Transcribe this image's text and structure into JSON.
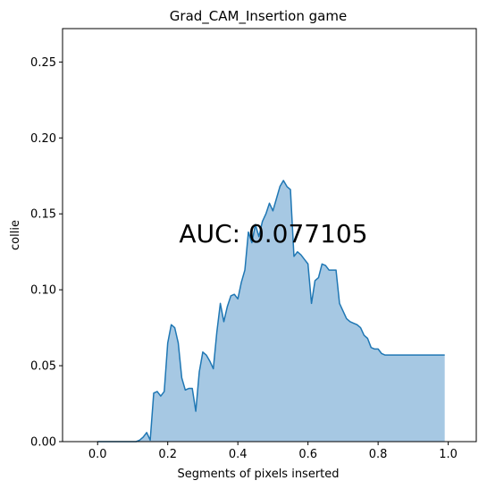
{
  "chart_data": {
    "type": "area",
    "title": "Grad_CAM_Insertion game",
    "xlabel": "Segments of pixels inserted",
    "ylabel": "collie",
    "xlim": [
      -0.1,
      1.08
    ],
    "ylim": [
      0,
      0.272
    ],
    "xticks": [
      0.0,
      0.2,
      0.4,
      0.6,
      0.8,
      1.0
    ],
    "xtick_labels": [
      "0.0",
      "0.2",
      "0.4",
      "0.6",
      "0.8",
      "1.0"
    ],
    "yticks": [
      0.0,
      0.05,
      0.1,
      0.15,
      0.2,
      0.25
    ],
    "ytick_labels": [
      "0.00",
      "0.05",
      "0.10",
      "0.15",
      "0.20",
      "0.25"
    ],
    "grid": false,
    "legend": "none",
    "annotation": "AUC: 0.077105",
    "line_color": "#1f77b4",
    "fill_color": "#a6c8e3",
    "x": [
      0.0,
      0.01,
      0.02,
      0.03,
      0.04,
      0.05,
      0.06,
      0.07,
      0.08,
      0.09,
      0.1,
      0.11,
      0.12,
      0.13,
      0.14,
      0.15,
      0.16,
      0.17,
      0.18,
      0.19,
      0.2,
      0.21,
      0.22,
      0.23,
      0.24,
      0.25,
      0.26,
      0.27,
      0.28,
      0.29,
      0.3,
      0.31,
      0.32,
      0.33,
      0.34,
      0.35,
      0.36,
      0.37,
      0.38,
      0.39,
      0.4,
      0.41,
      0.42,
      0.43,
      0.44,
      0.45,
      0.46,
      0.47,
      0.48,
      0.49,
      0.5,
      0.51,
      0.52,
      0.53,
      0.54,
      0.55,
      0.56,
      0.57,
      0.58,
      0.59,
      0.6,
      0.61,
      0.62,
      0.63,
      0.64,
      0.65,
      0.66,
      0.67,
      0.68,
      0.69,
      0.7,
      0.71,
      0.72,
      0.73,
      0.74,
      0.75,
      0.76,
      0.77,
      0.78,
      0.79,
      0.8,
      0.81,
      0.82,
      0.83,
      0.84,
      0.85,
      0.86,
      0.87,
      0.88,
      0.89,
      0.9,
      0.91,
      0.92,
      0.93,
      0.94,
      0.95,
      0.96,
      0.97,
      0.98,
      0.99
    ],
    "y": [
      0.0,
      0.0,
      0.0,
      0.0,
      0.0,
      0.0,
      0.0,
      0.0,
      0.0,
      0.0,
      0.0,
      0.0,
      0.001,
      0.003,
      0.006,
      0.001,
      0.032,
      0.033,
      0.03,
      0.033,
      0.065,
      0.077,
      0.075,
      0.065,
      0.042,
      0.034,
      0.035,
      0.035,
      0.02,
      0.046,
      0.059,
      0.057,
      0.053,
      0.048,
      0.072,
      0.091,
      0.079,
      0.089,
      0.096,
      0.097,
      0.094,
      0.105,
      0.113,
      0.138,
      0.131,
      0.143,
      0.135,
      0.145,
      0.15,
      0.157,
      0.152,
      0.16,
      0.168,
      0.172,
      0.168,
      0.166,
      0.122,
      0.125,
      0.123,
      0.12,
      0.117,
      0.091,
      0.106,
      0.108,
      0.117,
      0.116,
      0.113,
      0.113,
      0.113,
      0.091,
      0.086,
      0.081,
      0.079,
      0.078,
      0.077,
      0.075,
      0.07,
      0.068,
      0.062,
      0.061,
      0.061,
      0.058,
      0.057,
      0.057,
      0.057,
      0.057,
      0.057,
      0.057,
      0.057,
      0.057,
      0.057,
      0.057,
      0.057,
      0.057,
      0.057,
      0.057,
      0.057,
      0.057,
      0.057,
      0.057
    ]
  }
}
